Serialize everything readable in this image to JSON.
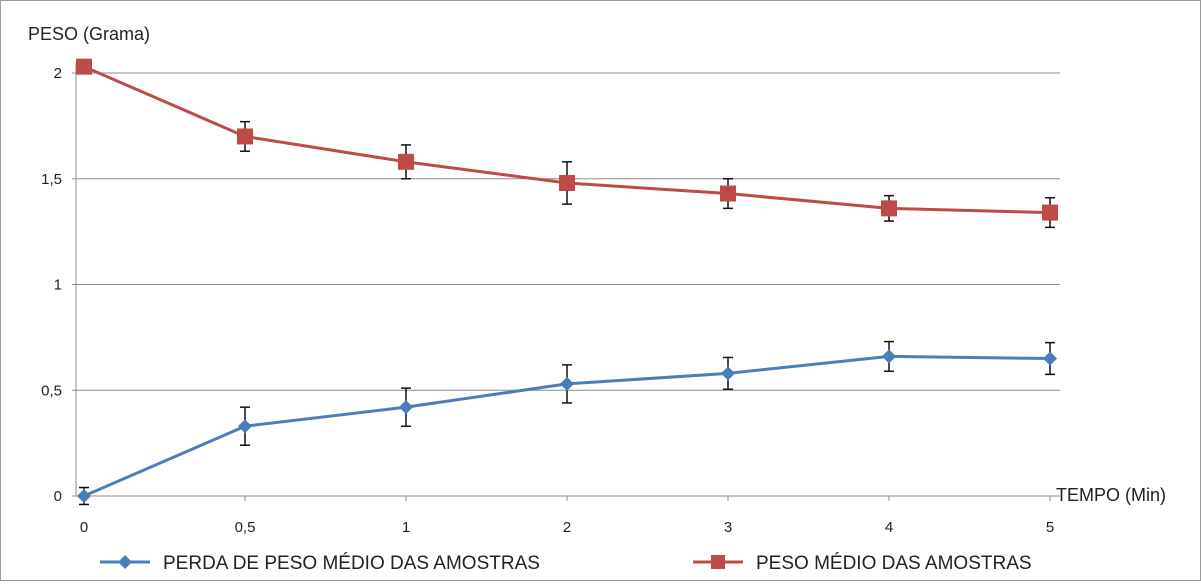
{
  "chart_data": {
    "type": "line",
    "title": "",
    "ylabel": "PESO (Grama)",
    "xlabel": "TEMPO (Min)",
    "categories": [
      "0",
      "0,5",
      "1",
      "2",
      "3",
      "4",
      "5"
    ],
    "ylim": [
      0,
      2
    ],
    "yticks": [
      {
        "value": 0,
        "label": "0"
      },
      {
        "value": 0.5,
        "label": "0,5"
      },
      {
        "value": 1,
        "label": "1"
      },
      {
        "value": 1.5,
        "label": "1,5"
      },
      {
        "value": 2,
        "label": "2"
      }
    ],
    "grid": true,
    "legend_position": "bottom",
    "series": [
      {
        "name": "PERDA DE PESO MÉDIO DAS AMOSTRAS",
        "color": "#4a7ebb",
        "marker": "diamond",
        "values": [
          0.0,
          0.33,
          0.42,
          0.53,
          0.58,
          0.66,
          0.65
        ],
        "errors": [
          0.04,
          0.09,
          0.09,
          0.09,
          0.075,
          0.07,
          0.075
        ]
      },
      {
        "name": "PESO MÉDIO DAS AMOSTRAS",
        "color": "#be4b48",
        "marker": "square",
        "values": [
          2.03,
          1.7,
          1.58,
          1.48,
          1.43,
          1.36,
          1.34
        ],
        "errors": [
          0.0,
          0.07,
          0.08,
          0.1,
          0.07,
          0.06,
          0.07
        ]
      }
    ]
  }
}
